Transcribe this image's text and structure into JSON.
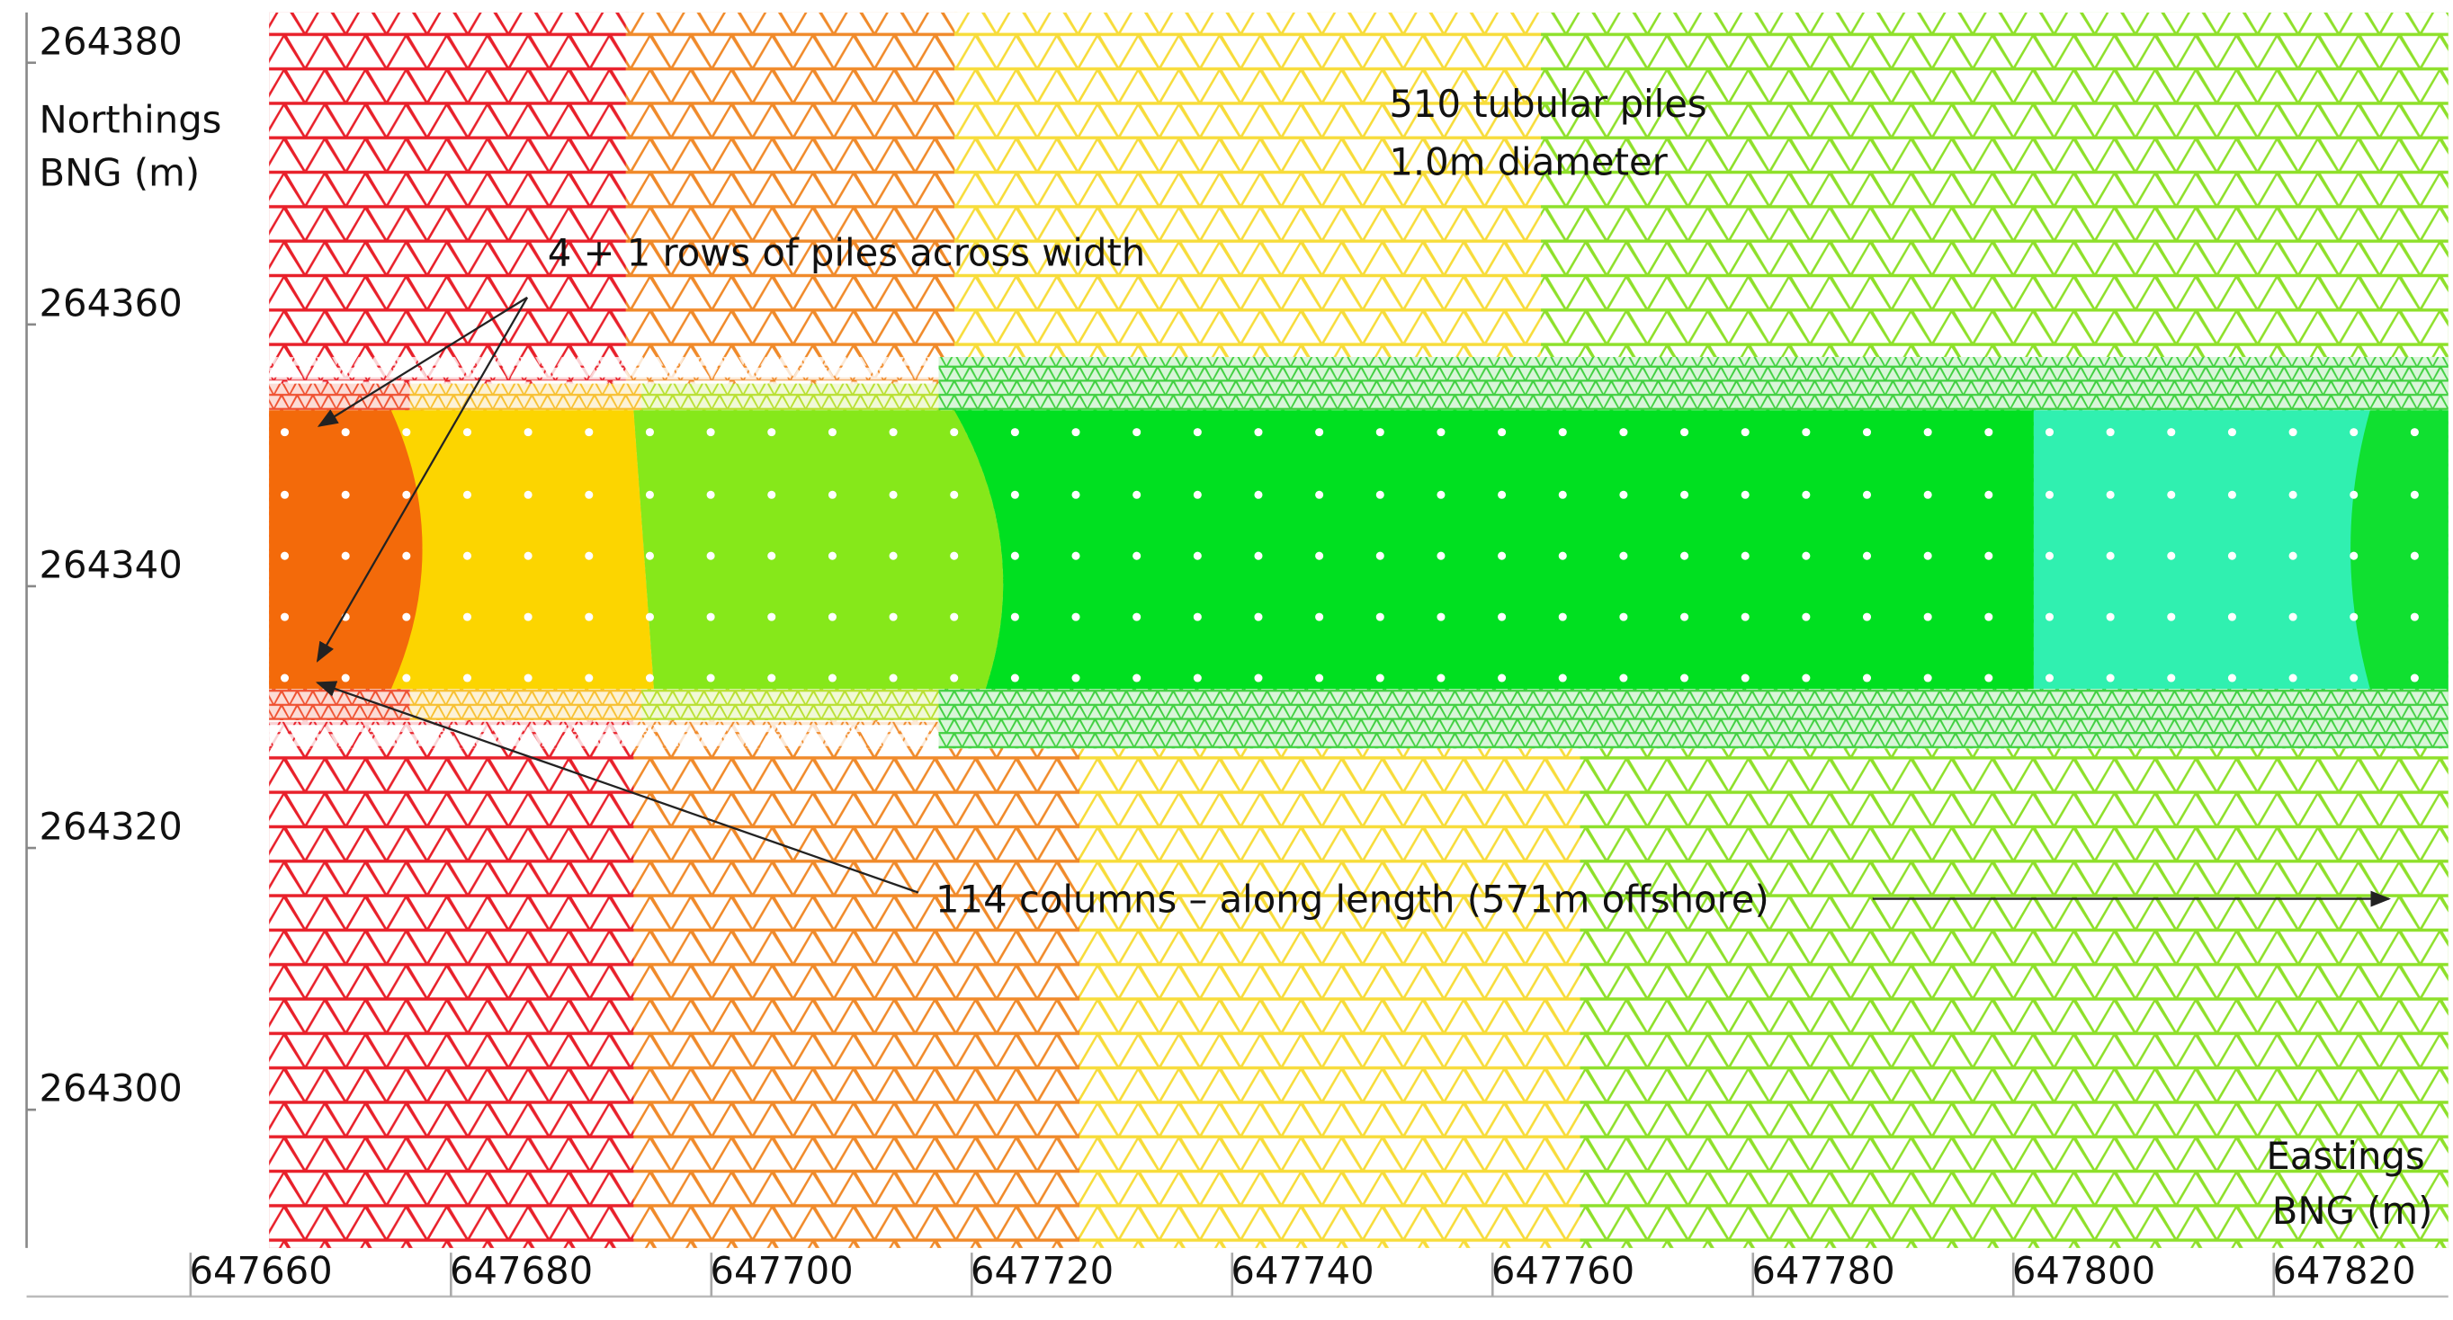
{
  "chart_data": {
    "type": "mesh",
    "ylabel": [
      "Northings",
      "BNG (m)"
    ],
    "xlabel": [
      "Eastings",
      "BNG (m)"
    ],
    "annotations": [
      "510 tubular piles",
      "1.0m diameter",
      "4 + 1 rows of piles across width",
      "114 columns – along length (571m offshore)"
    ],
    "xlim": [
      647642,
      647828
    ],
    "xticks": [
      647660,
      647680,
      647700,
      647720,
      647740,
      647760,
      647780,
      647800,
      647820
    ],
    "ylim": [
      264288,
      264382.4
    ],
    "yticks": [
      264300,
      264320,
      264340,
      264360,
      264380
    ]
  }
}
